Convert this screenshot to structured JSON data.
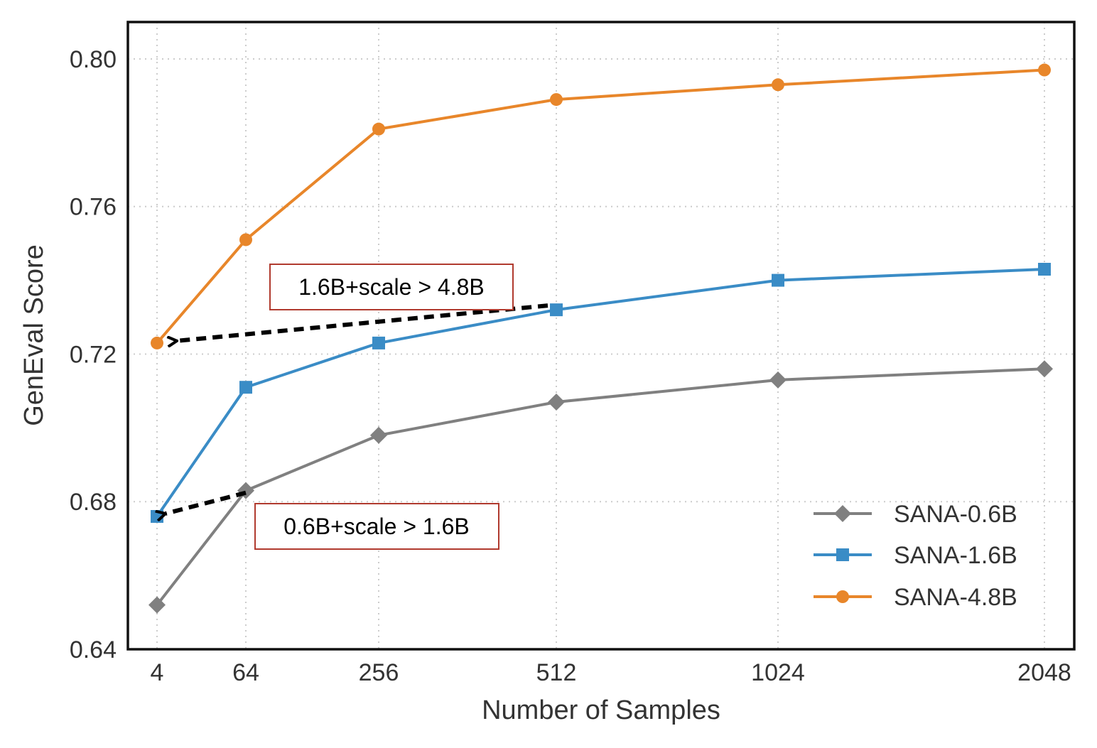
{
  "chart_data": {
    "type": "line",
    "title": "",
    "xlabel": "Number of Samples",
    "ylabel": "GenEval Score",
    "categories": [
      "4",
      "64",
      "256",
      "512",
      "1024",
      "2048"
    ],
    "x": [
      4,
      64,
      256,
      512,
      1024,
      2048
    ],
    "ylim": [
      0.64,
      0.81
    ],
    "yticks": [
      "0.64",
      "0.68",
      "0.72",
      "0.76",
      "0.80"
    ],
    "grid": true,
    "legend_position": "bottom-right",
    "series": [
      {
        "name": "SANA-0.6B",
        "color": "#808080",
        "marker": "diamond",
        "values": [
          0.652,
          0.683,
          0.698,
          0.707,
          0.713,
          0.716
        ]
      },
      {
        "name": "SANA-1.6B",
        "color": "#3a8cc6",
        "marker": "square",
        "values": [
          0.676,
          0.711,
          0.723,
          0.732,
          0.74,
          0.743
        ]
      },
      {
        "name": "SANA-4.8B",
        "color": "#e8862a",
        "marker": "circle",
        "values": [
          0.723,
          0.751,
          0.781,
          0.789,
          0.793,
          0.797
        ]
      }
    ],
    "annotations": [
      {
        "text": "1.6B+scale > 4.8B",
        "from_series": "SANA-1.6B",
        "from_x": 512,
        "to_series": "SANA-4.8B",
        "to_x": 4
      },
      {
        "text": "0.6B+scale > 1.6B",
        "from_series": "SANA-0.6B",
        "from_x": 64,
        "to_series": "SANA-1.6B",
        "to_x": 4
      }
    ]
  }
}
